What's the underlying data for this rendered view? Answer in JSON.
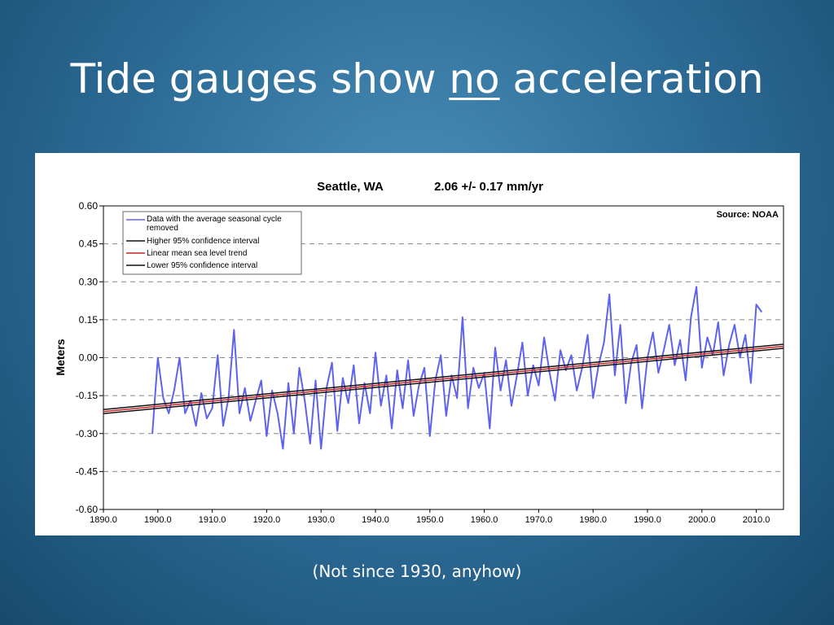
{
  "slide": {
    "title_prefix": "Tide gauges show ",
    "title_emphasis": "no",
    "title_suffix": " acceleration",
    "caption": "(Not since 1930, anyhow)"
  },
  "colors": {
    "series_data": "#5e63ee",
    "trend": "#cc2222",
    "confidence": "#111111",
    "grid": "#888888"
  },
  "chart_data": {
    "type": "line",
    "title": "Seattle, WA",
    "rate": "2.06 +/- 0.17 mm/yr",
    "source": "Source: NOAA",
    "xlabel": "",
    "ylabel": "Meters",
    "xlim": [
      1890,
      2015
    ],
    "ylim": [
      -0.6,
      0.6
    ],
    "x_ticks": [
      "1890.0",
      "1900.0",
      "1910.0",
      "1920.0",
      "1930.0",
      "1940.0",
      "1950.0",
      "1960.0",
      "1970.0",
      "1980.0",
      "1990.0",
      "2000.0",
      "2010.0"
    ],
    "y_ticks": [
      "0.60",
      "0.45",
      "0.30",
      "0.15",
      "0.00",
      "-0.15",
      "-0.30",
      "-0.45",
      "-0.60"
    ],
    "grid": "dashed horizontal",
    "legend_position": "top-left",
    "legend": [
      "Data with the average seasonal cycle removed",
      "Higher 95% confidence interval",
      "Linear mean sea level trend",
      "Lower 95% confidence interval"
    ],
    "series": [
      {
        "name": "Data with the average seasonal cycle removed",
        "x": [
          1899.0,
          1900.0,
          1901.0,
          1902.0,
          1903.0,
          1904.0,
          1905.0,
          1906.0,
          1907.0,
          1908.0,
          1909.0,
          1910.0,
          1911.0,
          1912.0,
          1913.0,
          1914.0,
          1915.0,
          1916.0,
          1917.0,
          1918.0,
          1919.0,
          1920.0,
          1921.0,
          1922.0,
          1923.0,
          1924.0,
          1925.0,
          1926.0,
          1927.0,
          1928.0,
          1929.0,
          1930.0,
          1931.0,
          1932.0,
          1933.0,
          1934.0,
          1935.0,
          1936.0,
          1937.0,
          1938.0,
          1939.0,
          1940.0,
          1941.0,
          1942.0,
          1943.0,
          1944.0,
          1945.0,
          1946.0,
          1947.0,
          1948.0,
          1949.0,
          1950.0,
          1951.0,
          1952.0,
          1953.0,
          1954.0,
          1955.0,
          1956.0,
          1957.0,
          1958.0,
          1959.0,
          1960.0,
          1961.0,
          1962.0,
          1963.0,
          1964.0,
          1965.0,
          1966.0,
          1967.0,
          1968.0,
          1969.0,
          1970.0,
          1971.0,
          1972.0,
          1973.0,
          1974.0,
          1975.0,
          1976.0,
          1977.0,
          1978.0,
          1979.0,
          1980.0,
          1981.0,
          1982.0,
          1983.0,
          1984.0,
          1985.0,
          1986.0,
          1987.0,
          1988.0,
          1989.0,
          1990.0,
          1991.0,
          1992.0,
          1993.0,
          1994.0,
          1995.0,
          1996.0,
          1997.0,
          1998.0,
          1999.0,
          2000.0,
          2001.0,
          2002.0,
          2003.0,
          2004.0,
          2005.0,
          2006.0,
          2007.0,
          2008.0,
          2009.0,
          2010.0,
          2011.0
        ],
        "values": [
          -0.3,
          0.0,
          -0.16,
          -0.22,
          -0.13,
          0.0,
          -0.22,
          -0.17,
          -0.27,
          -0.14,
          -0.24,
          -0.2,
          0.01,
          -0.27,
          -0.16,
          0.11,
          -0.22,
          -0.12,
          -0.25,
          -0.17,
          -0.09,
          -0.31,
          -0.13,
          -0.22,
          -0.36,
          -0.1,
          -0.3,
          -0.04,
          -0.17,
          -0.34,
          -0.09,
          -0.36,
          -0.12,
          -0.02,
          -0.29,
          -0.08,
          -0.18,
          -0.03,
          -0.26,
          -0.1,
          -0.22,
          0.02,
          -0.19,
          -0.07,
          -0.28,
          -0.05,
          -0.2,
          -0.01,
          -0.23,
          -0.11,
          -0.04,
          -0.31,
          -0.09,
          0.01,
          -0.23,
          -0.07,
          -0.16,
          0.16,
          -0.2,
          -0.04,
          -0.12,
          -0.06,
          -0.28,
          0.04,
          -0.13,
          -0.01,
          -0.19,
          -0.07,
          0.06,
          -0.15,
          -0.03,
          -0.11,
          0.08,
          -0.06,
          -0.17,
          0.03,
          -0.05,
          0.01,
          -0.13,
          -0.04,
          0.09,
          -0.16,
          -0.03,
          0.06,
          0.25,
          -0.07,
          0.13,
          -0.18,
          -0.02,
          0.05,
          -0.2,
          0.0,
          0.1,
          -0.06,
          0.03,
          0.13,
          -0.03,
          0.07,
          -0.09,
          0.16,
          0.28,
          -0.04,
          0.08,
          0.01,
          0.14,
          -0.07,
          0.05,
          0.13,
          0.0,
          0.09,
          -0.1,
          0.21,
          0.18
        ]
      }
    ],
    "trend": {
      "name": "Linear mean sea level trend",
      "x": [
        1890,
        2015
      ],
      "values": [
        -0.213,
        0.045
      ],
      "band": 0.008
    }
  }
}
